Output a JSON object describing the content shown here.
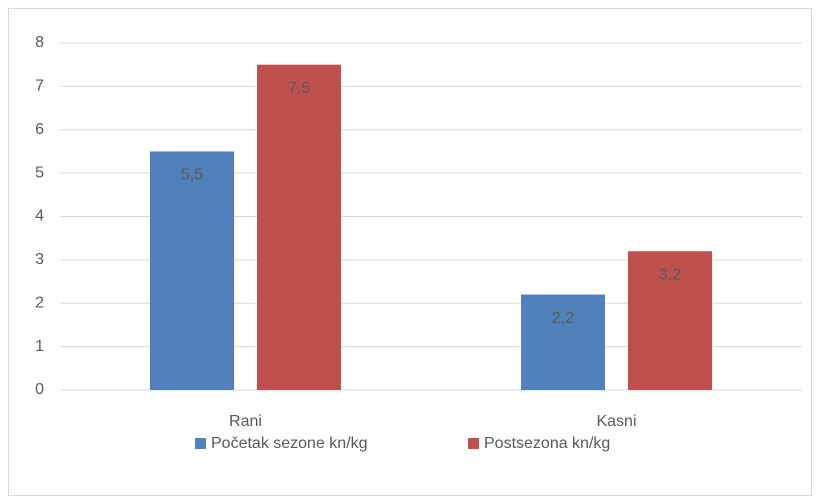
{
  "chart_data": {
    "type": "bar",
    "categories": [
      "Rani",
      "Kasni"
    ],
    "series": [
      {
        "name": "Početak sezone kn/kg",
        "color": "#4f81bd",
        "values": [
          5.5,
          2.2
        ],
        "value_labels": [
          "5,5",
          "2,2"
        ]
      },
      {
        "name": "Postsezona kn/kg",
        "color": "#c0504d",
        "values": [
          7.5,
          3.2
        ],
        "value_labels": [
          "7,5",
          "3,2"
        ]
      }
    ],
    "ylim": [
      0,
      8
    ],
    "yticks": [
      0,
      1,
      2,
      3,
      4,
      5,
      6,
      7,
      8
    ],
    "grid": true,
    "legend": "bottom"
  }
}
